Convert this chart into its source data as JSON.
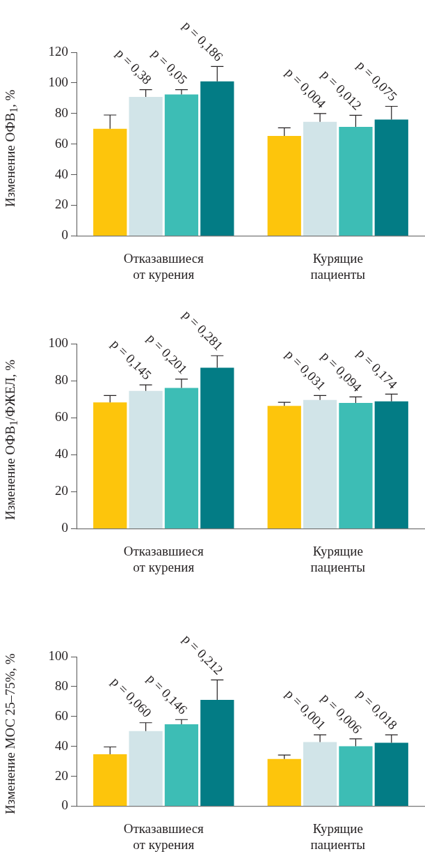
{
  "chart_data": [
    {
      "type": "bar",
      "ylabel": "Изменение ОФВ$_{1}$, %",
      "categories": [
        "Отказавшиеся\nот курения",
        "Курящие\nпациенты"
      ],
      "ylim": [
        0,
        120
      ],
      "yticks": [
        0,
        20,
        40,
        60,
        80,
        100,
        120
      ],
      "series": [
        {
          "color": "#fdc50c",
          "values": [
            70,
            65.3
          ],
          "errors": [
            9,
            5.3
          ]
        },
        {
          "color": "#d1e4e8",
          "values": [
            90.8,
            74.6
          ],
          "errors": [
            4.8,
            5.4
          ]
        },
        {
          "color": "#3dbdb5",
          "values": [
            92.4,
            71.2
          ],
          "errors": [
            3.2,
            7.6
          ]
        },
        {
          "color": "#037c85",
          "values": [
            101,
            76
          ],
          "errors": [
            9.7,
            8.7
          ]
        }
      ],
      "annotations": [
        "p = 0,38",
        "p = 0,05",
        "p = 0,186",
        "p = 0,004",
        "p = 0,012",
        "p = 0,075"
      ]
    },
    {
      "type": "bar",
      "ylabel": "Изменение ОФВ$_{1}$/ФЖЕЛ, %",
      "categories": [
        "Отказавшиеся\nот курения",
        "Курящие\nпациенты"
      ],
      "ylim": [
        0,
        100
      ],
      "yticks": [
        0,
        20,
        40,
        60,
        80,
        100
      ],
      "series": [
        {
          "color": "#fdc50c",
          "values": [
            68.3,
            66.4
          ],
          "errors": [
            3.7,
            1.9
          ]
        },
        {
          "color": "#d1e4e8",
          "values": [
            74.5,
            69.6
          ],
          "errors": [
            3.2,
            2.4
          ]
        },
        {
          "color": "#3dbdb5",
          "values": [
            76.1,
            68
          ],
          "errors": [
            4.7,
            3.2
          ]
        },
        {
          "color": "#037c85",
          "values": [
            87,
            68.8
          ],
          "errors": [
            6.5,
            3.9
          ]
        }
      ],
      "annotations": [
        "p = 0,145",
        "p = 0,201",
        "p = 0,281",
        "p = 0,031",
        "p = 0,094",
        "p = 0,174"
      ]
    },
    {
      "type": "bar",
      "ylabel": "Изменение МОС 25–75%, %",
      "categories": [
        "Отказавшиеся\nот курения",
        "Курящие\nпациенты"
      ],
      "ylim": [
        0,
        100
      ],
      "yticks": [
        0,
        20,
        40,
        60,
        80,
        100
      ],
      "series": [
        {
          "color": "#fdc50c",
          "values": [
            34.7,
            31.5
          ],
          "errors": [
            4.9,
            2.7
          ]
        },
        {
          "color": "#d1e4e8",
          "values": [
            50.2,
            42.9
          ],
          "errors": [
            5.6,
            4.8
          ]
        },
        {
          "color": "#3dbdb5",
          "values": [
            54.7,
            40.1
          ],
          "errors": [
            3.2,
            4.9
          ]
        },
        {
          "color": "#037c85",
          "values": [
            71.1,
            42.4
          ],
          "errors": [
            13.3,
            5.3
          ]
        }
      ],
      "annotations": [
        "p = 0,060",
        "p = 0,146",
        "p = 0,212",
        "p = 0,001",
        "p = 0,006",
        "p = 0,018"
      ]
    }
  ]
}
